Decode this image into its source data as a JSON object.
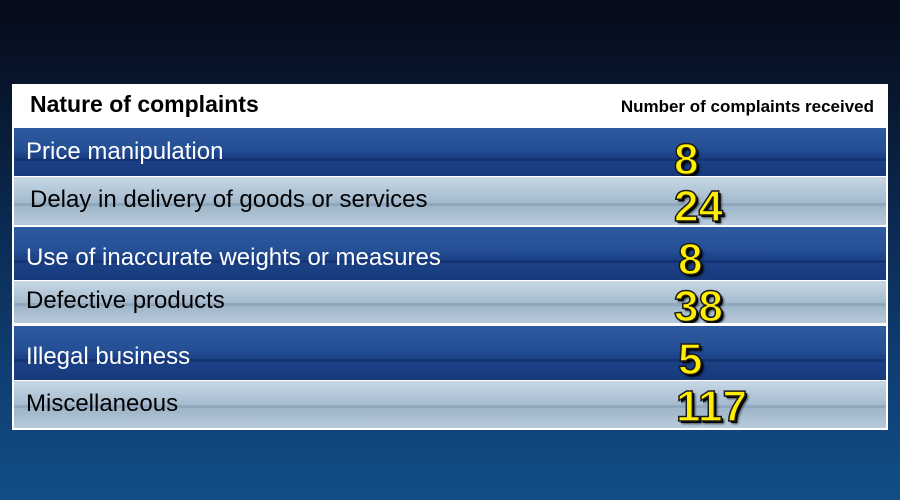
{
  "header": {
    "nature_label": "Nature of complaints",
    "count_label": "Number of complaints received"
  },
  "rows": [
    {
      "label": "Price manipulation",
      "value": "8"
    },
    {
      "label": "Delay in delivery of goods or services",
      "value": "24"
    },
    {
      "label": "Use of inaccurate weights or measures",
      "value": "8"
    },
    {
      "label": "Defective products",
      "value": "38"
    },
    {
      "label": "Illegal business",
      "value": "5"
    },
    {
      "label": "Miscellaneous",
      "value": "117"
    }
  ],
  "colors": {
    "value_text": "#ffee00",
    "dark_row": "#1f4a8f",
    "light_row": "#aec3d5"
  }
}
